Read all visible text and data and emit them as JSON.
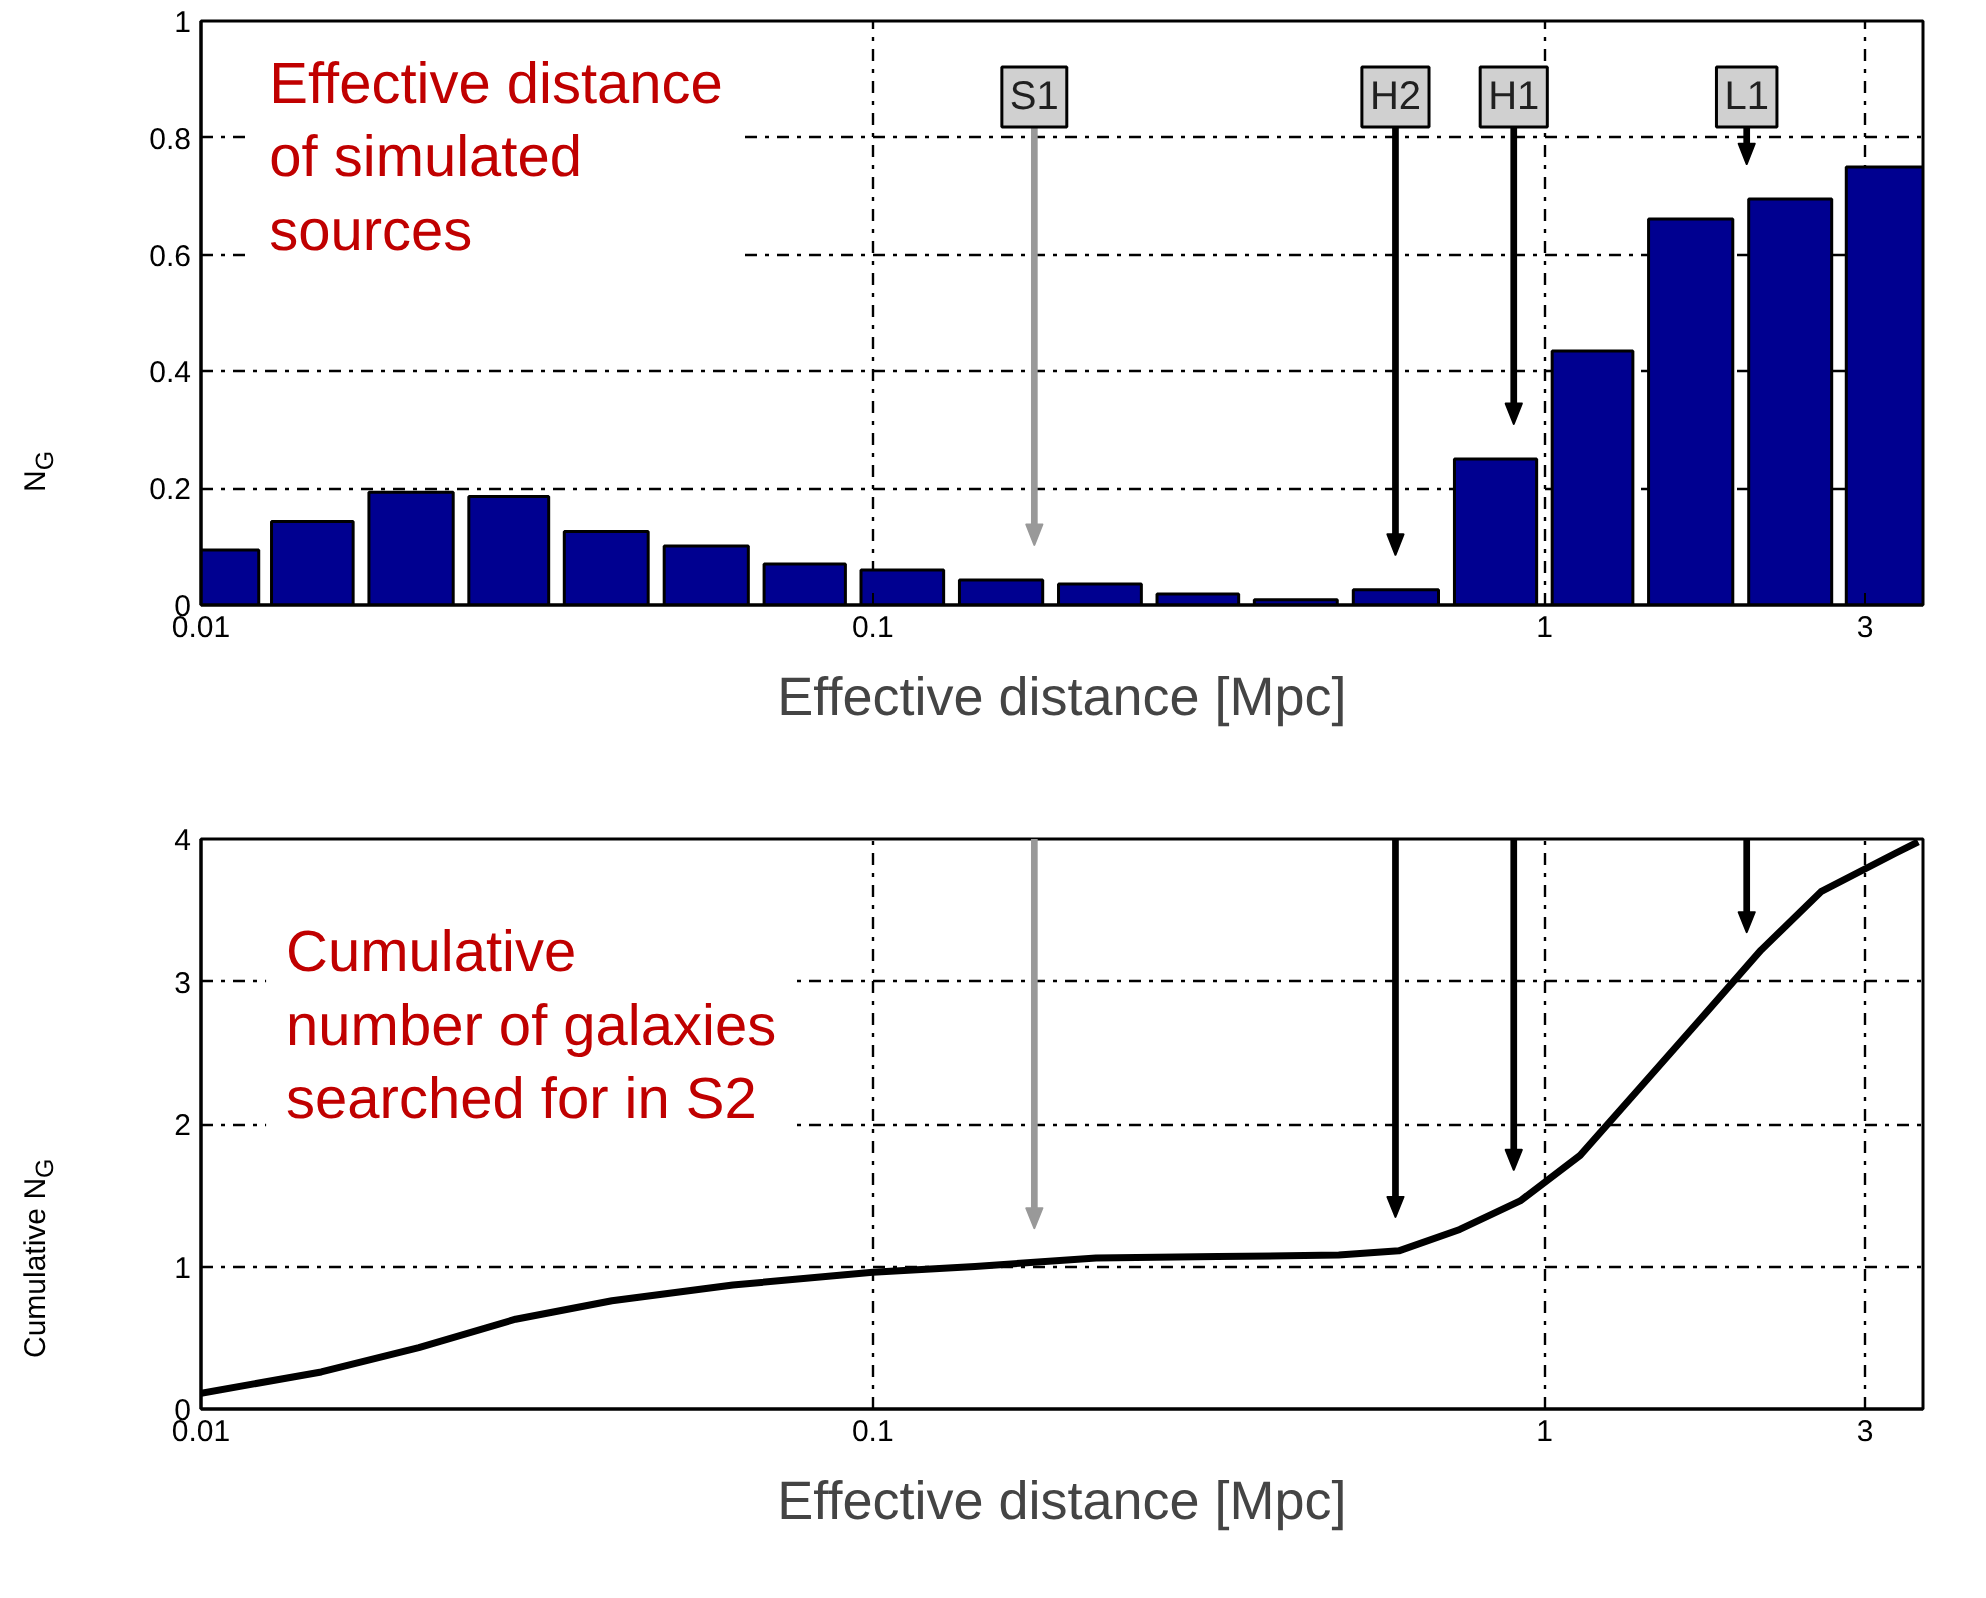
{
  "chart_data": [
    {
      "type": "histogram",
      "xlabel": "Effective distance [Mpc]",
      "ylabel": "N$_{G}$",
      "log": "x",
      "grid": true,
      "color": "#000090",
      "bins": [
        0.01,
        0.0124,
        0.0173,
        0.0244,
        0.0338,
        0.0476,
        0.0671,
        0.0935,
        0.131,
        0.184,
        0.258,
        0.36,
        0.505,
        0.715,
        1.0,
        1.39,
        1.96,
        2.75,
        3.66
      ],
      "values": [
        0.094,
        0.143,
        0.193,
        0.186,
        0.126,
        0.101,
        0.07,
        0.06,
        0.043,
        0.036,
        0.019,
        0.009,
        0.026,
        0.25,
        0.435,
        0.661,
        0.695,
        0.75
      ],
      "xlim": [
        0.01,
        3.66
      ],
      "xticks": [
        0.01,
        0.1,
        1,
        3
      ],
      "ylim": [
        0,
        1
      ],
      "yticks": [
        0,
        0.2,
        0.4,
        0.6,
        0.8,
        1
      ],
      "annotations": [
        "Effective distance\nof simulated\nsources"
      ],
      "ref_lines": [
        {
          "axis": "x",
          "value": 0.174,
          "label": "S1",
          "color": "#999999"
        },
        {
          "axis": "x",
          "value": 0.6,
          "label": "H2",
          "color": "#000000"
        },
        {
          "axis": "x",
          "value": 0.9,
          "label": "H1",
          "color": "#000000"
        },
        {
          "axis": "x",
          "value": 2.0,
          "label": "L1",
          "color": "#000000"
        }
      ]
    },
    {
      "type": "line",
      "xlabel": "Effective distance [Mpc]",
      "ylabel": "Cumulative N$_{G}$",
      "log": "x",
      "grid": true,
      "line_style": "solid",
      "series": [
        {
          "color": "#000000",
          "x": [
            0.01,
            0.0151,
            0.0211,
            0.0294,
            0.0409,
            0.0619,
            0.1,
            0.142,
            0.215,
            0.326,
            0.494,
            0.607,
            0.748,
            0.92,
            1.13,
            1.39,
            1.71,
            2.1,
            2.58,
            3.33,
            3.6
          ],
          "values": [
            0.11,
            0.26,
            0.43,
            0.63,
            0.76,
            0.87,
            0.96,
            1.0,
            1.06,
            1.07,
            1.08,
            1.11,
            1.26,
            1.46,
            1.78,
            2.26,
            2.74,
            3.22,
            3.63,
            3.9,
            3.98
          ]
        }
      ],
      "xlim": [
        0.01,
        3.66
      ],
      "xticks": [
        0.01,
        0.1,
        1,
        3
      ],
      "ylim": [
        0,
        4
      ],
      "yticks": [
        0,
        1,
        2,
        3,
        4
      ],
      "annotations": [
        "Cumulative\nnumber of galaxies\nsearched for in S2"
      ],
      "ref_lines": [
        {
          "axis": "x",
          "value": 0.174,
          "color": "#999999"
        },
        {
          "axis": "x",
          "value": 0.6,
          "color": "#000000"
        },
        {
          "axis": "x",
          "value": 0.9,
          "color": "#000000"
        },
        {
          "axis": "x",
          "value": 2.0,
          "color": "#000000"
        }
      ]
    }
  ]
}
